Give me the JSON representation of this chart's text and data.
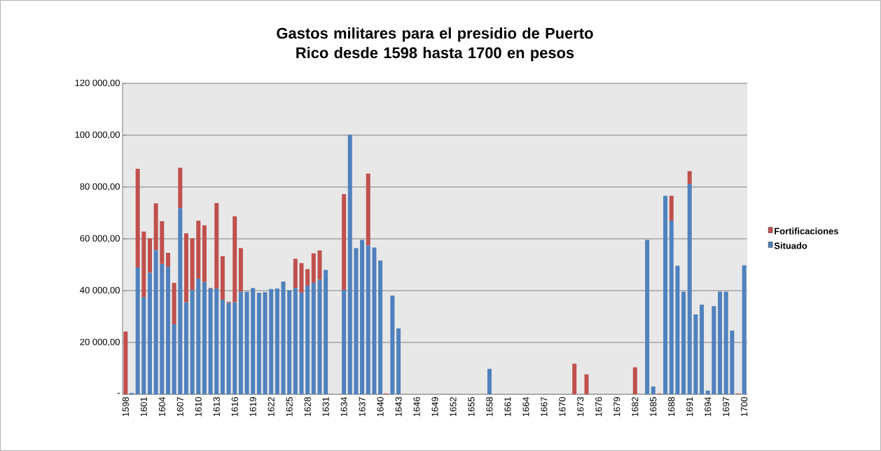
{
  "chart_data": {
    "type": "bar",
    "stacked": true,
    "title": "Gastos militares para el presidio de Puerto Rico desde 1598 hasta 1700 en pesos",
    "categories": [
      "1598",
      null,
      null,
      "1601",
      null,
      null,
      "1604",
      null,
      null,
      "1607",
      null,
      null,
      "1610",
      null,
      null,
      "1613",
      null,
      null,
      "1616",
      null,
      null,
      "1619",
      null,
      null,
      "1622",
      null,
      null,
      "1625",
      null,
      null,
      "1628",
      null,
      null,
      "1631",
      null,
      null,
      "1634",
      null,
      null,
      "1637",
      null,
      null,
      "1640",
      null,
      null,
      "1643",
      null,
      null,
      "1646",
      null,
      null,
      "1649",
      null,
      null,
      "1652",
      null,
      null,
      "1655",
      null,
      null,
      "1658",
      null,
      null,
      "1661",
      null,
      null,
      "1664",
      null,
      null,
      "1667",
      null,
      null,
      "1670",
      null,
      null,
      "1673",
      null,
      null,
      "1676",
      null,
      null,
      "1679",
      null,
      null,
      "1682",
      null,
      null,
      "1685",
      null,
      null,
      "1688",
      null,
      null,
      "1691",
      null,
      null,
      "1694",
      null,
      null,
      "1697",
      null,
      null,
      "1700"
    ],
    "series": [
      {
        "name": "Situado",
        "color": "#4f81bd",
        "values": [
          0,
          500,
          48900,
          37400,
          46900,
          55600,
          50300,
          49100,
          27000,
          71800,
          35500,
          40100,
          44600,
          43300,
          40800,
          40800,
          36500,
          35300,
          35500,
          39600,
          39600,
          41000,
          39200,
          39400,
          40600,
          40800,
          43500,
          40100,
          41000,
          39200,
          41900,
          43000,
          44200,
          48000,
          0,
          0,
          40300,
          100100,
          56400,
          59600,
          57500,
          56600,
          51600,
          0,
          38100,
          25400,
          0,
          0,
          0,
          0,
          0,
          0,
          0,
          0,
          0,
          0,
          0,
          0,
          0,
          0,
          9800,
          0,
          0,
          0,
          0,
          0,
          0,
          0,
          0,
          0,
          0,
          0,
          0,
          0,
          0,
          0,
          0,
          0,
          0,
          0,
          0,
          0,
          0,
          0,
          0,
          0,
          59600,
          3000,
          0,
          76600,
          67000,
          49600,
          39600,
          81100,
          30800,
          34600,
          1400,
          34000,
          39600,
          39600,
          24600,
          0,
          49800
        ]
      },
      {
        "name": "Fortificaciones",
        "color": "#c0504d",
        "values": [
          24200,
          0,
          38100,
          25400,
          13300,
          18100,
          16500,
          5500,
          16000,
          15600,
          26600,
          20100,
          22400,
          21900,
          200,
          33000,
          16800,
          400,
          33200,
          16800,
          0,
          0,
          0,
          0,
          0,
          0,
          0,
          0,
          11300,
          11400,
          6400,
          11400,
          11300,
          0,
          0,
          0,
          36900,
          0,
          0,
          0,
          27700,
          0,
          0,
          300,
          0,
          0,
          0,
          0,
          0,
          0,
          0,
          0,
          0,
          0,
          0,
          0,
          0,
          0,
          0,
          0,
          0,
          0,
          0,
          0,
          0,
          0,
          0,
          0,
          0,
          0,
          0,
          0,
          0,
          0,
          11800,
          0,
          7700,
          0,
          0,
          0,
          0,
          0,
          0,
          0,
          10400,
          0,
          0,
          0,
          300,
          0,
          9600,
          0,
          0,
          5000,
          0,
          0,
          0,
          0,
          0,
          0,
          0,
          300,
          0
        ]
      }
    ],
    "ylim": [
      0,
      120000
    ],
    "yticks": [
      {
        "value": 0,
        "label": "-"
      },
      {
        "value": 20000,
        "label": "20 000,00"
      },
      {
        "value": 40000,
        "label": "40 000,00"
      },
      {
        "value": 60000,
        "label": "60 000,00"
      },
      {
        "value": 80000,
        "label": "80 000,00"
      },
      {
        "value": 100000,
        "label": "100 000,00"
      },
      {
        "value": 120000,
        "label": "120 000,00"
      }
    ],
    "grid": "y",
    "legend": "right"
  }
}
